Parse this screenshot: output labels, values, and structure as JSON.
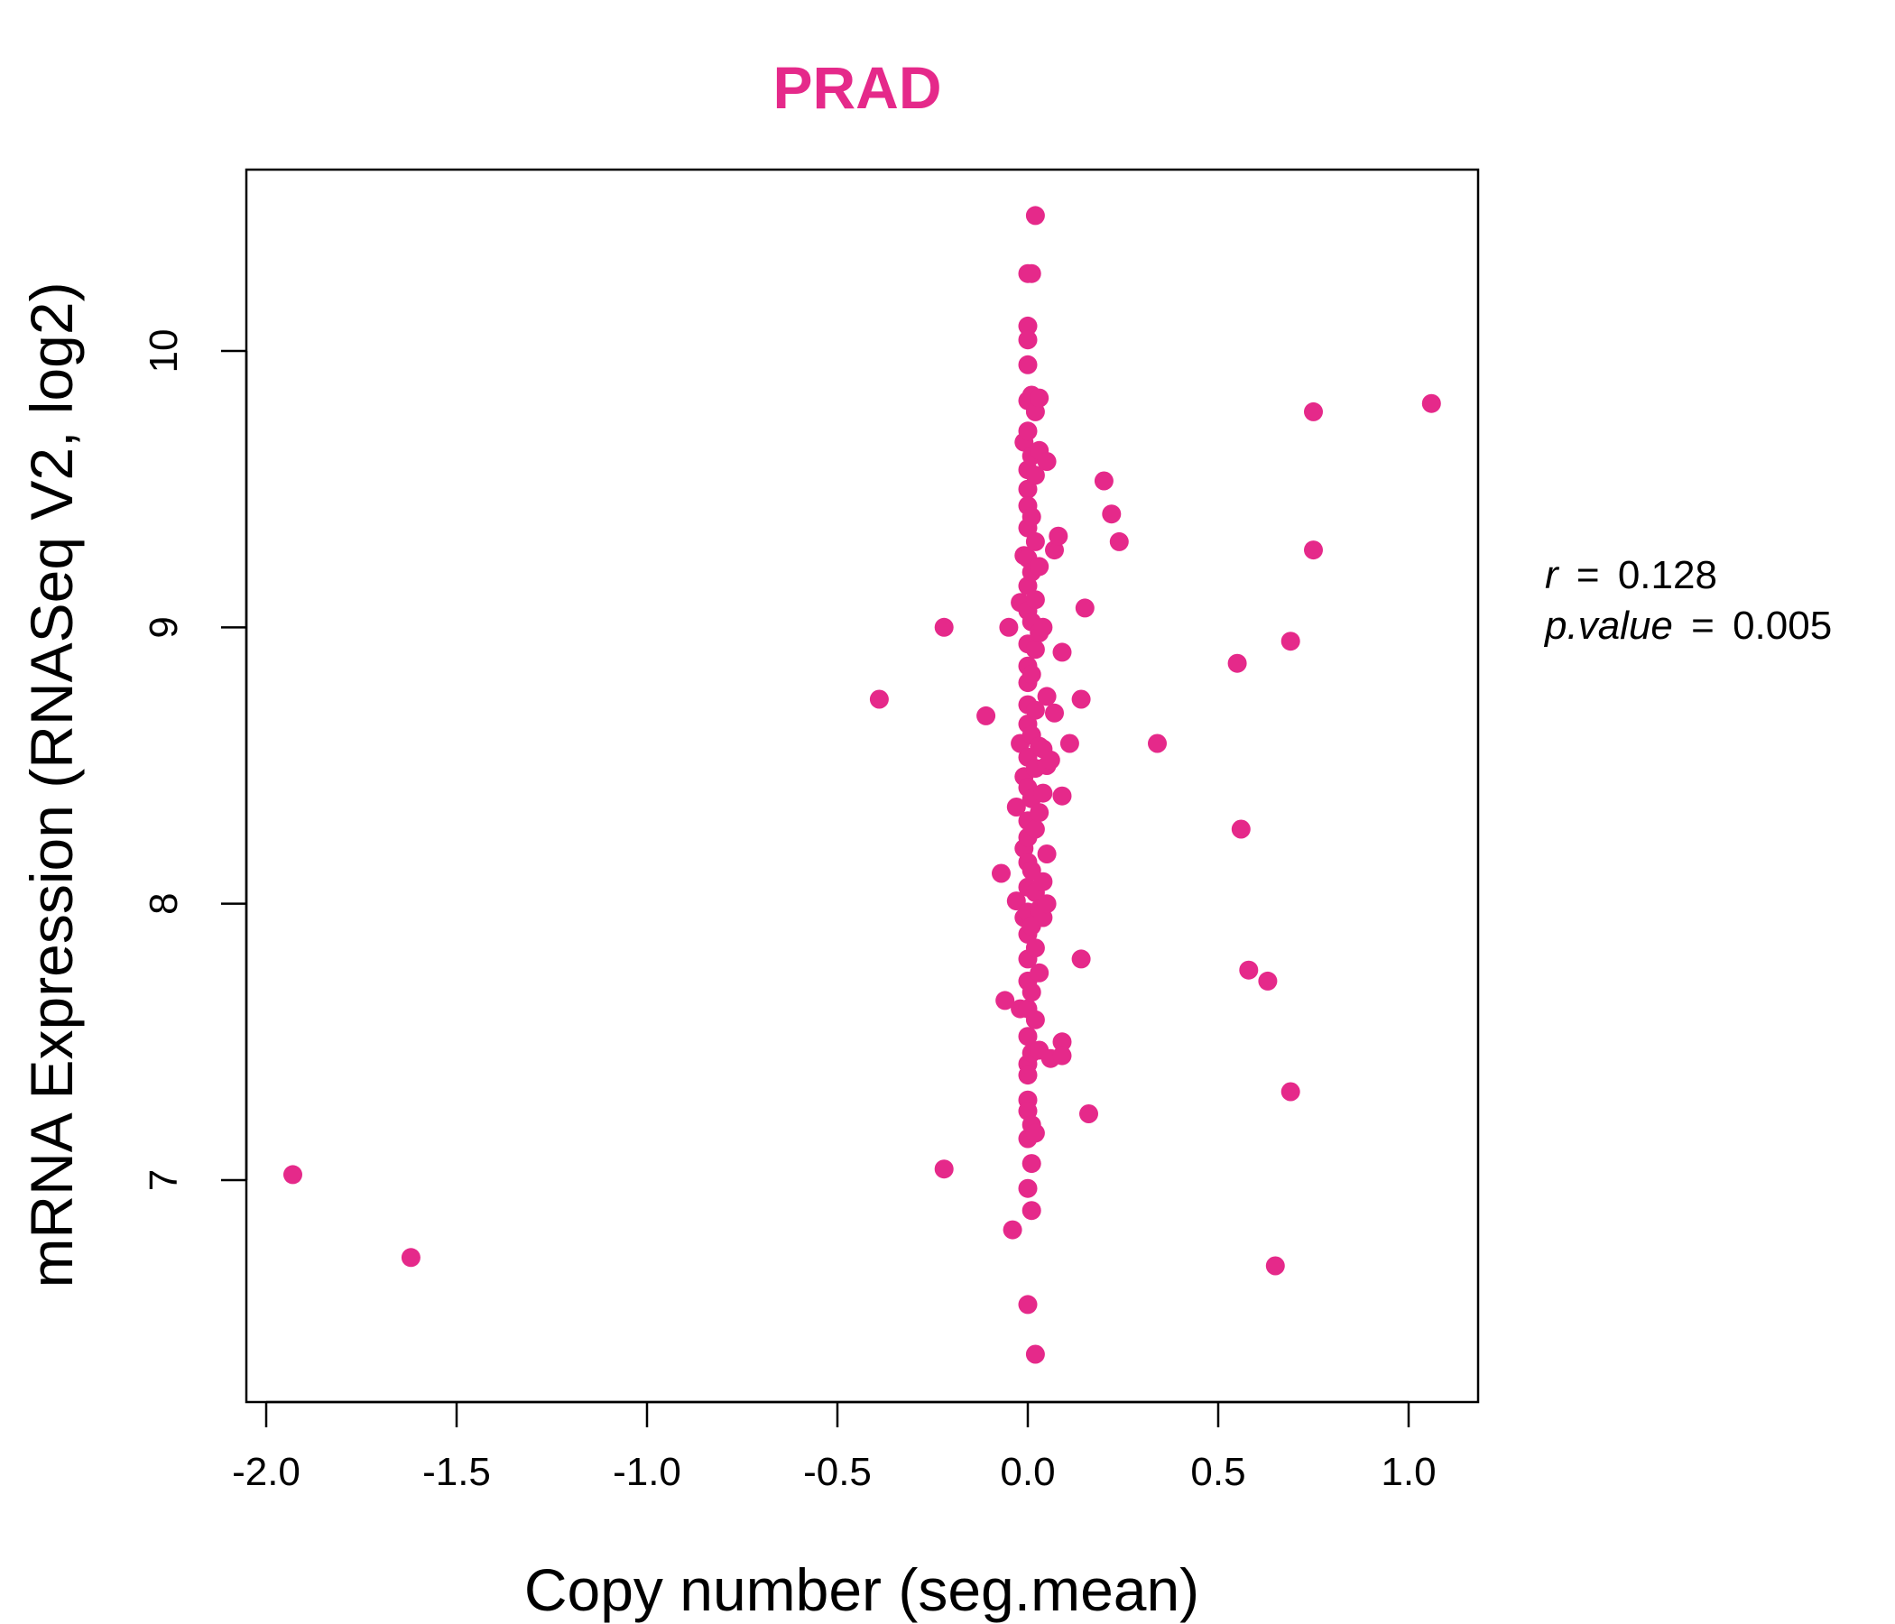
{
  "chart_data": {
    "type": "scatter",
    "title": "PRAD",
    "xlabel": "Copy number (seg.mean)",
    "ylabel": "mRNA Expression (RNASeq V2, log2)",
    "xlim": [
      -2.0,
      1.15
    ],
    "ylim": [
      6.35,
      10.58
    ],
    "xticks": [
      -2.0,
      -1.5,
      -1.0,
      -0.5,
      0.0,
      0.5,
      1.0
    ],
    "xtick_labels": [
      "-2.0",
      "-1.5",
      "-1.0",
      "-0.5",
      "0.0",
      "0.5",
      "1.0"
    ],
    "yticks": [
      7,
      8,
      9,
      10
    ],
    "ytick_labels": [
      "7",
      "8",
      "9",
      "10"
    ],
    "grid": false,
    "color": "#e5298a",
    "annotation": {
      "r_label": "r",
      "r_value": "0.128",
      "p_label": "p.value",
      "p_value": "0.005",
      "eq": "="
    },
    "points": [
      [
        -1.93,
        7.02
      ],
      [
        -1.62,
        6.72
      ],
      [
        -0.39,
        8.74
      ],
      [
        -0.22,
        9.0
      ],
      [
        -0.22,
        7.04
      ],
      [
        -0.11,
        8.68
      ],
      [
        -0.07,
        8.11
      ],
      [
        -0.06,
        7.65
      ],
      [
        -0.05,
        9.0
      ],
      [
        -0.04,
        6.82
      ],
      [
        -0.03,
        8.35
      ],
      [
        -0.03,
        8.01
      ],
      [
        -0.02,
        9.09
      ],
      [
        -0.02,
        8.58
      ],
      [
        -0.02,
        7.62
      ],
      [
        -0.01,
        9.26
      ],
      [
        -0.01,
        9.67
      ],
      [
        -0.01,
        8.2
      ],
      [
        -0.01,
        7.95
      ],
      [
        -0.01,
        8.46
      ],
      [
        0.0,
        10.28
      ],
      [
        0.0,
        10.09
      ],
      [
        0.0,
        10.04
      ],
      [
        0.0,
        9.95
      ],
      [
        0.0,
        9.82
      ],
      [
        0.0,
        9.71
      ],
      [
        0.0,
        9.57
      ],
      [
        0.0,
        9.5
      ],
      [
        0.0,
        9.44
      ],
      [
        0.0,
        9.36
      ],
      [
        0.0,
        9.25
      ],
      [
        0.0,
        9.15
      ],
      [
        0.0,
        9.06
      ],
      [
        0.0,
        8.94
      ],
      [
        0.0,
        8.86
      ],
      [
        0.0,
        8.8
      ],
      [
        0.0,
        8.72
      ],
      [
        0.0,
        8.65
      ],
      [
        0.0,
        8.53
      ],
      [
        0.0,
        8.42
      ],
      [
        0.0,
        8.3
      ],
      [
        0.0,
        8.24
      ],
      [
        0.0,
        8.15
      ],
      [
        0.0,
        8.06
      ],
      [
        0.0,
        7.97
      ],
      [
        0.0,
        7.89
      ],
      [
        0.0,
        7.8
      ],
      [
        0.0,
        7.72
      ],
      [
        0.0,
        7.62
      ],
      [
        0.0,
        7.52
      ],
      [
        0.0,
        7.42
      ],
      [
        0.0,
        7.38
      ],
      [
        0.0,
        7.29
      ],
      [
        0.0,
        7.25
      ],
      [
        0.0,
        7.15
      ],
      [
        0.0,
        6.97
      ],
      [
        0.0,
        6.55
      ],
      [
        0.01,
        10.28
      ],
      [
        0.01,
        9.84
      ],
      [
        0.01,
        9.62
      ],
      [
        0.01,
        9.4
      ],
      [
        0.01,
        9.2
      ],
      [
        0.01,
        9.02
      ],
      [
        0.01,
        8.83
      ],
      [
        0.01,
        8.61
      ],
      [
        0.01,
        8.38
      ],
      [
        0.01,
        8.12
      ],
      [
        0.01,
        7.92
      ],
      [
        0.01,
        7.68
      ],
      [
        0.01,
        7.46
      ],
      [
        0.01,
        7.2
      ],
      [
        0.01,
        7.06
      ],
      [
        0.01,
        6.89
      ],
      [
        0.02,
        10.49
      ],
      [
        0.02,
        9.78
      ],
      [
        0.02,
        9.55
      ],
      [
        0.02,
        9.31
      ],
      [
        0.02,
        9.1
      ],
      [
        0.02,
        8.92
      ],
      [
        0.02,
        8.7
      ],
      [
        0.02,
        8.49
      ],
      [
        0.02,
        8.27
      ],
      [
        0.02,
        8.04
      ],
      [
        0.02,
        7.84
      ],
      [
        0.02,
        7.58
      ],
      [
        0.02,
        7.17
      ],
      [
        0.02,
        6.37
      ],
      [
        0.03,
        9.83
      ],
      [
        0.03,
        9.64
      ],
      [
        0.03,
        9.22
      ],
      [
        0.03,
        8.98
      ],
      [
        0.03,
        8.57
      ],
      [
        0.03,
        8.33
      ],
      [
        0.03,
        7.98
      ],
      [
        0.03,
        7.75
      ],
      [
        0.03,
        7.47
      ],
      [
        0.04,
        9.0
      ],
      [
        0.04,
        8.56
      ],
      [
        0.04,
        8.4
      ],
      [
        0.04,
        8.08
      ],
      [
        0.04,
        7.95
      ],
      [
        0.05,
        9.6
      ],
      [
        0.05,
        8.75
      ],
      [
        0.05,
        8.5
      ],
      [
        0.05,
        8.18
      ],
      [
        0.05,
        8.0
      ],
      [
        0.06,
        8.52
      ],
      [
        0.06,
        7.44
      ],
      [
        0.07,
        9.28
      ],
      [
        0.07,
        8.69
      ],
      [
        0.08,
        9.33
      ],
      [
        0.09,
        8.91
      ],
      [
        0.09,
        8.39
      ],
      [
        0.09,
        7.5
      ],
      [
        0.09,
        7.45
      ],
      [
        0.11,
        8.58
      ],
      [
        0.14,
        8.74
      ],
      [
        0.14,
        7.8
      ],
      [
        0.15,
        9.07
      ],
      [
        0.16,
        7.24
      ],
      [
        0.2,
        9.53
      ],
      [
        0.22,
        9.41
      ],
      [
        0.24,
        9.31
      ],
      [
        0.34,
        8.58
      ],
      [
        0.55,
        8.87
      ],
      [
        0.56,
        8.27
      ],
      [
        0.58,
        7.76
      ],
      [
        0.63,
        7.72
      ],
      [
        0.65,
        6.69
      ],
      [
        0.69,
        8.95
      ],
      [
        0.69,
        7.32
      ],
      [
        0.75,
        9.78
      ],
      [
        0.75,
        9.28
      ],
      [
        1.06,
        9.81
      ]
    ]
  }
}
